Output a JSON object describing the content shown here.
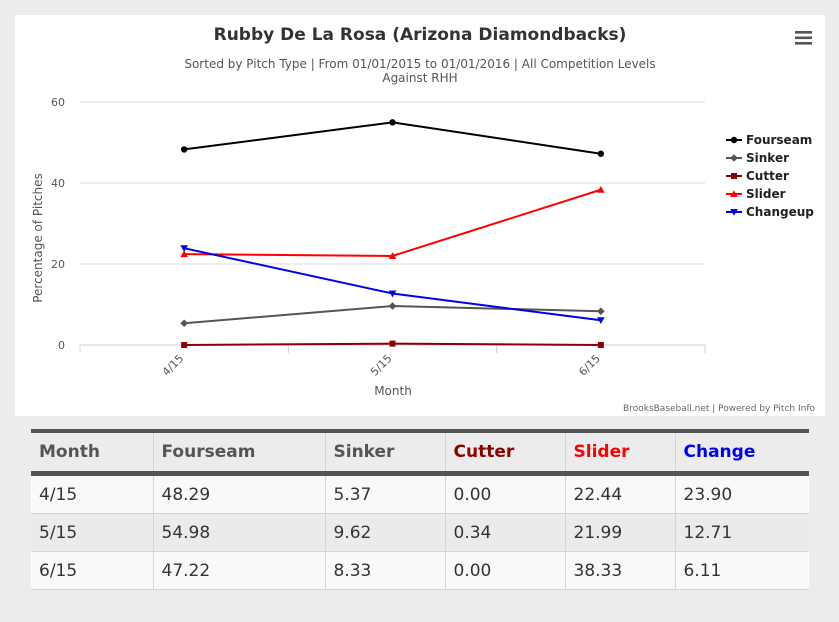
{
  "chart_data": {
    "type": "line",
    "title": "Rubby De La Rosa (Arizona Diamondbacks)",
    "subtitle_lines": [
      "Sorted by Pitch Type | From 01/01/2015 to 01/01/2016 | All Competition Levels",
      "Against RHH"
    ],
    "xlabel": "Month",
    "ylabel": "Percentage of Pitches",
    "categories": [
      "4/15",
      "5/15",
      "6/15"
    ],
    "ylim": [
      0,
      60
    ],
    "y_ticks": [
      "0",
      "20",
      "40",
      "60"
    ],
    "grid": true,
    "legend_position": "right",
    "series": [
      {
        "name": "Fourseam",
        "values": [
          48.29,
          54.98,
          47.22
        ],
        "color": "#000000",
        "marker": "circle"
      },
      {
        "name": "Sinker",
        "values": [
          5.37,
          9.62,
          8.33
        ],
        "color": "#555555",
        "marker": "diamond"
      },
      {
        "name": "Cutter",
        "values": [
          0.0,
          0.34,
          0.0
        ],
        "color": "#8b0000",
        "marker": "square"
      },
      {
        "name": "Slider",
        "values": [
          22.44,
          21.99,
          38.33
        ],
        "color": "#ff0000",
        "marker": "triangle"
      },
      {
        "name": "Changeup",
        "values": [
          23.9,
          12.71,
          6.11
        ],
        "color": "#0000ee",
        "marker": "triangle-down"
      }
    ],
    "credits": "BrooksBaseball.net | Powered by Pitch Info"
  },
  "menu": {
    "icon": "hamburger-menu-icon"
  },
  "table": {
    "columns": [
      {
        "label": "Month",
        "color": "#555555"
      },
      {
        "label": "Fourseam",
        "color": "#555555"
      },
      {
        "label": "Sinker",
        "color": "#555555"
      },
      {
        "label": "Cutter",
        "color": "#8b0000"
      },
      {
        "label": "Slider",
        "color": "#ff0000"
      },
      {
        "label": "Change",
        "color": "#0000ee"
      }
    ],
    "rows": [
      [
        "4/15",
        "48.29",
        "5.37",
        "0.00",
        "22.44",
        "23.90"
      ],
      [
        "5/15",
        "54.98",
        "9.62",
        "0.34",
        "21.99",
        "12.71"
      ],
      [
        "6/15",
        "47.22",
        "8.33",
        "0.00",
        "38.33",
        "6.11"
      ]
    ]
  }
}
